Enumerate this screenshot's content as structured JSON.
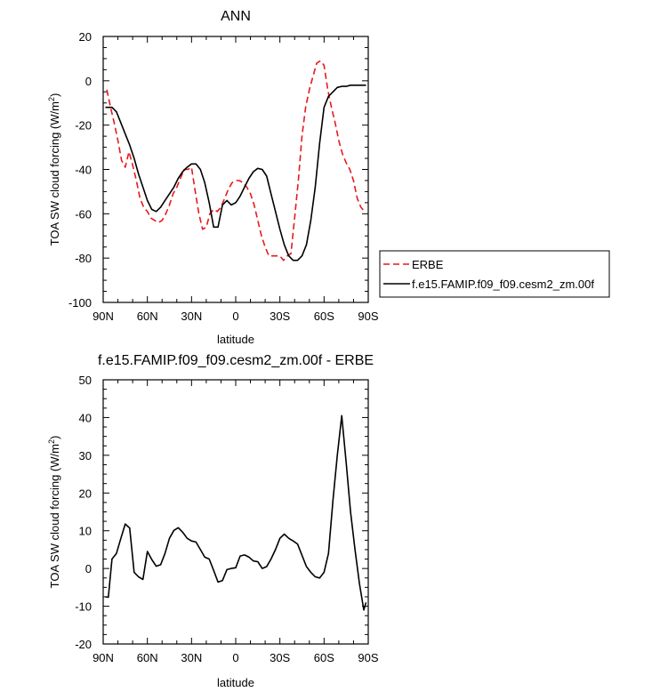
{
  "chart_data": [
    {
      "type": "line",
      "title": "ANN",
      "xlabel": "latitude",
      "ylabel": "TOA SW cloud forcing (W/m",
      "ylabel_sup": "2",
      "ylabel_tail": ")",
      "xlim": [
        90,
        -90
      ],
      "ylim": [
        -100,
        20
      ],
      "xticks": [
        90,
        60,
        30,
        0,
        -30,
        -60,
        -90
      ],
      "xtick_labels": [
        "90N",
        "60N",
        "30N",
        "0",
        "30S",
        "60S",
        "90S"
      ],
      "yticks": [
        -100,
        -80,
        -60,
        -40,
        -20,
        0,
        20
      ],
      "ytick_labels": [
        "-100",
        "-80",
        "-60",
        "-40",
        "-20",
        "0",
        "20"
      ],
      "legend": {
        "position": "right"
      },
      "series": [
        {
          "name": "ERBE",
          "color": "#e8191b",
          "dash": "dashed",
          "x": [
            87.5,
            85,
            82.5,
            80,
            77.5,
            75,
            72.5,
            70,
            67.5,
            65,
            62.5,
            60,
            57.5,
            55,
            52.5,
            50,
            47.5,
            45,
            42.5,
            40,
            37.5,
            35,
            32.5,
            30,
            27.5,
            25,
            22.5,
            20,
            17.5,
            15,
            12.5,
            10,
            7.5,
            5,
            2.5,
            0,
            -2.5,
            -5,
            -7.5,
            -10,
            -12.5,
            -15,
            -17.5,
            -20,
            -22.5,
            -25,
            -27.5,
            -30,
            -32.5,
            -35,
            -37.5,
            -40,
            -42.5,
            -45,
            -47.5,
            -50,
            -52.5,
            -55,
            -57.5,
            -60,
            -62.5,
            -65,
            -67.5,
            -70,
            -72.5,
            -75,
            -77.5,
            -80,
            -82.5,
            -85,
            -87.5
          ],
          "y": [
            -4,
            -12,
            -19,
            -27,
            -36,
            -39,
            -32,
            -38,
            -45,
            -53,
            -57,
            -59,
            -62,
            -63,
            -64,
            -63,
            -60,
            -56,
            -51,
            -48,
            -44,
            -40,
            -40,
            -39,
            -50,
            -60,
            -67,
            -66,
            -60,
            -58,
            -59,
            -57,
            -53,
            -49,
            -46,
            -45,
            -45,
            -46,
            -48,
            -51,
            -56,
            -63,
            -70,
            -75,
            -79,
            -79,
            -79,
            -79,
            -81,
            -79,
            -78,
            -62,
            -45,
            -25,
            -12,
            -4,
            2,
            8,
            9,
            7,
            -4,
            -12,
            -19,
            -27,
            -33,
            -37,
            -40,
            -45,
            -53,
            -57,
            -59
          ]
        },
        {
          "name": "f.e15.FAMIP.f09_f09.cesm2_zm.00f",
          "color": "#000000",
          "dash": "solid",
          "x": [
            88.5,
            86.5,
            84,
            81,
            78,
            75,
            72,
            69,
            66,
            63,
            60,
            57,
            54,
            51,
            48,
            45,
            42,
            39,
            36,
            33,
            30,
            27,
            24,
            21,
            18,
            15,
            12,
            9,
            6,
            3,
            0,
            -3,
            -6,
            -9,
            -12,
            -15,
            -18,
            -21,
            -24,
            -27,
            -30,
            -33,
            -36,
            -39,
            -42,
            -45,
            -48,
            -51,
            -54,
            -57,
            -60,
            -63,
            -66,
            -69,
            -72,
            -75,
            -78,
            -81,
            -84,
            -87,
            -88.5
          ],
          "y": [
            -12,
            -12,
            -12,
            -14,
            -19,
            -24,
            -29,
            -35,
            -42,
            -48,
            -54,
            -58,
            -59,
            -57,
            -54,
            -51,
            -48,
            -44,
            -41,
            -39,
            -37.5,
            -37.5,
            -40,
            -46,
            -55,
            -66,
            -66,
            -56,
            -54,
            -56,
            -55,
            -52,
            -48,
            -44,
            -41,
            -39.5,
            -40,
            -43,
            -51,
            -59,
            -67,
            -74,
            -79,
            -81,
            -81,
            -79,
            -74,
            -63,
            -48,
            -28,
            -12,
            -7,
            -5,
            -3,
            -2.5,
            -2.5,
            -2,
            -2,
            -2,
            -2,
            -2
          ]
        }
      ]
    },
    {
      "type": "line",
      "title": "f.e15.FAMIP.f09_f09.cesm2_zm.00f - ERBE",
      "xlabel": "latitude",
      "ylabel": "TOA SW cloud forcing (W/m",
      "ylabel_sup": "2",
      "ylabel_tail": ")",
      "xlim": [
        90,
        -90
      ],
      "ylim": [
        -20,
        50
      ],
      "xticks": [
        90,
        60,
        30,
        0,
        -30,
        -60,
        -90
      ],
      "xtick_labels": [
        "90N",
        "60N",
        "30N",
        "0",
        "30S",
        "60S",
        "90S"
      ],
      "yticks": [
        -20,
        -10,
        0,
        10,
        20,
        30,
        40,
        50
      ],
      "ytick_labels": [
        "-20",
        "-10",
        "0",
        "10",
        "20",
        "30",
        "40",
        "50"
      ],
      "series": [
        {
          "color": "#000000",
          "dash": "solid",
          "x": [
            88.5,
            86.5,
            84,
            81,
            78,
            75,
            72,
            69,
            66,
            63,
            60,
            57,
            54,
            51,
            48,
            45,
            42,
            39,
            36,
            33,
            30,
            27,
            24,
            21,
            18,
            15,
            12,
            9,
            6,
            3,
            0,
            -3,
            -6,
            -9,
            -12,
            -15,
            -18,
            -21,
            -24,
            -27,
            -30,
            -33,
            -36,
            -39,
            -42,
            -45,
            -48,
            -51,
            -54,
            -57,
            -60,
            -63,
            -66,
            -69,
            -72,
            -75,
            -78,
            -81,
            -84,
            -87,
            -88.5
          ],
          "y": [
            -7.5,
            -7.6,
            2.5,
            4,
            8,
            11.8,
            10.7,
            -1,
            -2.2,
            -2.9,
            4.5,
            2.4,
            0.6,
            1,
            4,
            8,
            10.1,
            10.8,
            9.6,
            8,
            7.3,
            7,
            5,
            3,
            2.5,
            -0.5,
            -3.6,
            -3.2,
            -0.3,
            0,
            0.2,
            3.3,
            3.6,
            3,
            2,
            1.8,
            0,
            0.5,
            2.5,
            5,
            8,
            9.1,
            8,
            7.3,
            6.5,
            3.5,
            0.5,
            -1,
            -2.2,
            -2.5,
            -1,
            4,
            18,
            30,
            40.5,
            28,
            15,
            5,
            -4,
            -11,
            -9
          ]
        }
      ]
    }
  ]
}
